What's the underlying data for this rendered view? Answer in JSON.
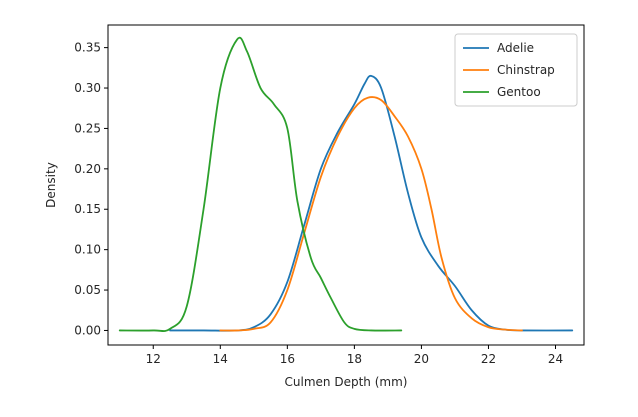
{
  "chart_data": {
    "type": "line",
    "xlabel": "Culmen Depth (mm)",
    "ylabel": "Density",
    "xlim": [
      10.65,
      24.85
    ],
    "ylim": [
      -0.018,
      0.378
    ],
    "x_ticks": [
      12,
      14,
      16,
      18,
      20,
      22,
      24
    ],
    "x_tick_labels": [
      "12",
      "14",
      "16",
      "18",
      "20",
      "22",
      "24"
    ],
    "y_ticks": [
      0.0,
      0.05,
      0.1,
      0.15,
      0.2,
      0.25,
      0.3,
      0.35
    ],
    "y_tick_labels": [
      "0.00",
      "0.05",
      "0.10",
      "0.15",
      "0.20",
      "0.25",
      "0.30",
      "0.35"
    ],
    "grid": false,
    "legend_position": "top-right",
    "series": [
      {
        "name": "Adelie",
        "color": "#1f77b4",
        "points": [
          [
            12.5,
            0.0
          ],
          [
            13.5,
            0.0
          ],
          [
            14.5,
            0.0
          ],
          [
            15.0,
            0.004
          ],
          [
            15.5,
            0.02
          ],
          [
            16.0,
            0.06
          ],
          [
            16.5,
            0.13
          ],
          [
            17.0,
            0.2
          ],
          [
            17.5,
            0.245
          ],
          [
            18.0,
            0.28
          ],
          [
            18.3,
            0.305
          ],
          [
            18.5,
            0.315
          ],
          [
            18.8,
            0.3
          ],
          [
            19.2,
            0.24
          ],
          [
            19.6,
            0.17
          ],
          [
            20.0,
            0.115
          ],
          [
            20.5,
            0.08
          ],
          [
            21.0,
            0.055
          ],
          [
            21.5,
            0.025
          ],
          [
            22.0,
            0.006
          ],
          [
            22.5,
            0.001
          ],
          [
            23.0,
            0.0
          ],
          [
            24.5,
            0.0
          ]
        ]
      },
      {
        "name": "Chinstrap",
        "color": "#ff7f0e",
        "points": [
          [
            14.0,
            0.0
          ],
          [
            14.5,
            0.0
          ],
          [
            15.0,
            0.002
          ],
          [
            15.5,
            0.01
          ],
          [
            16.0,
            0.05
          ],
          [
            16.5,
            0.12
          ],
          [
            17.0,
            0.19
          ],
          [
            17.5,
            0.24
          ],
          [
            18.0,
            0.275
          ],
          [
            18.4,
            0.288
          ],
          [
            18.8,
            0.285
          ],
          [
            19.2,
            0.265
          ],
          [
            19.6,
            0.24
          ],
          [
            20.0,
            0.2
          ],
          [
            20.3,
            0.15
          ],
          [
            20.6,
            0.09
          ],
          [
            21.0,
            0.04
          ],
          [
            21.5,
            0.015
          ],
          [
            22.0,
            0.004
          ],
          [
            22.5,
            0.001
          ],
          [
            23.0,
            0.0
          ]
        ]
      },
      {
        "name": "Gentoo",
        "color": "#2ca02c",
        "points": [
          [
            11.0,
            0.0
          ],
          [
            12.0,
            0.0
          ],
          [
            12.5,
            0.002
          ],
          [
            13.0,
            0.03
          ],
          [
            13.5,
            0.15
          ],
          [
            14.0,
            0.3
          ],
          [
            14.5,
            0.36
          ],
          [
            14.8,
            0.345
          ],
          [
            15.2,
            0.3
          ],
          [
            15.6,
            0.28
          ],
          [
            16.0,
            0.25
          ],
          [
            16.3,
            0.16
          ],
          [
            16.7,
            0.09
          ],
          [
            17.0,
            0.065
          ],
          [
            17.3,
            0.04
          ],
          [
            17.7,
            0.01
          ],
          [
            18.0,
            0.002
          ],
          [
            18.5,
            0.0
          ],
          [
            19.4,
            0.0
          ]
        ]
      }
    ]
  }
}
